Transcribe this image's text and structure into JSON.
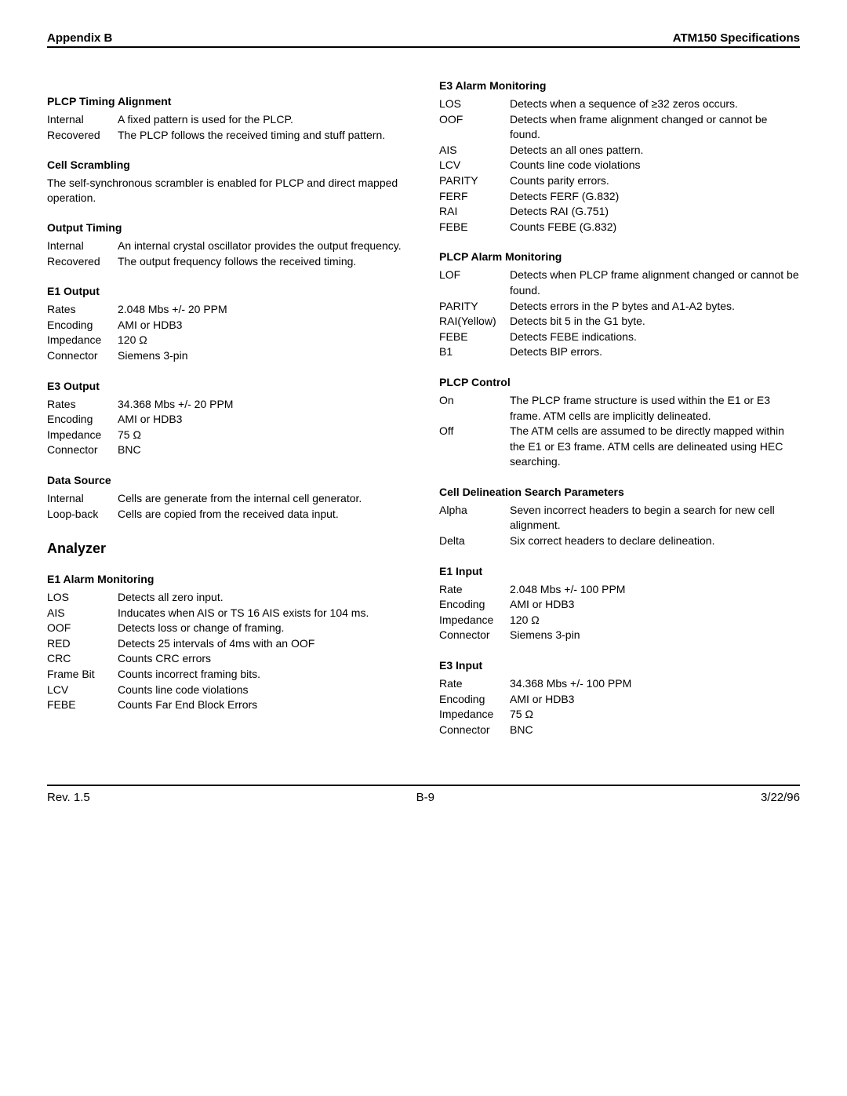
{
  "header": {
    "left": "Appendix B",
    "right": "ATM150 Specifications"
  },
  "footer": {
    "left": "Rev. 1.5",
    "center": "B-9",
    "right": "3/22/96"
  },
  "left": {
    "plcp_timing": {
      "title": "PLCP Timing Alignment",
      "rows": [
        {
          "k": "Internal",
          "v": "A fixed pattern is used for the PLCP."
        },
        {
          "k": "Recovered",
          "v": "The PLCP follows the received timing and stuff pattern."
        }
      ]
    },
    "cell_scrambling": {
      "title": "Cell Scrambling",
      "text": "The self-synchronous scrambler is enabled for PLCP and direct mapped operation."
    },
    "output_timing": {
      "title": "Output Timing",
      "rows": [
        {
          "k": "Internal",
          "v": "An internal crystal oscillator provides the output frequency."
        },
        {
          "k": "Recovered",
          "v": "The output frequency follows the received timing."
        }
      ]
    },
    "e1_output": {
      "title": "E1 Output",
      "rows": [
        {
          "k": "Rates",
          "v": "2.048 Mbs +/- 20 PPM"
        },
        {
          "k": "Encoding",
          "v": "AMI or HDB3"
        },
        {
          "k": "Impedance",
          "v": "120 Ω"
        },
        {
          "k": "Connector",
          "v": "Siemens 3-pin"
        }
      ]
    },
    "e3_output": {
      "title": "E3 Output",
      "rows": [
        {
          "k": "Rates",
          "v": "34.368 Mbs +/- 20 PPM"
        },
        {
          "k": "Encoding",
          "v": "AMI or HDB3"
        },
        {
          "k": "Impedance",
          "v": "75 Ω"
        },
        {
          "k": "Connector",
          "v": "BNC"
        }
      ]
    },
    "data_source": {
      "title": "Data Source",
      "rows": [
        {
          "k": "Internal",
          "v": "Cells are generate from the internal cell generator."
        },
        {
          "k": "Loop-back",
          "v": "Cells are copied from the received data input."
        }
      ]
    },
    "analyzer_title": "Analyzer",
    "e1_alarm": {
      "title": "E1 Alarm Monitoring",
      "rows": [
        {
          "k": "LOS",
          "v": "Detects all zero input."
        },
        {
          "k": "AIS",
          "v": "Inducates when AIS or TS 16 AIS exists for 104 ms."
        },
        {
          "k": "OOF",
          "v": "Detects loss or change of framing."
        },
        {
          "k": "RED",
          "v": "Detects 25 intervals of 4ms with an OOF"
        },
        {
          "k": "CRC",
          "v": "Counts CRC errors"
        },
        {
          "k": "Frame Bit",
          "v": "Counts incorrect framing bits."
        },
        {
          "k": "LCV",
          "v": "Counts line code violations"
        },
        {
          "k": "FEBE",
          "v": "Counts Far End Block Errors"
        }
      ]
    }
  },
  "right": {
    "e3_alarm": {
      "title": "E3 Alarm Monitoring",
      "rows": [
        {
          "k": "LOS",
          "v": "Detects when a sequence of ≥32 zeros occurs."
        },
        {
          "k": "OOF",
          "v": "Detects when frame alignment changed or cannot be found."
        },
        {
          "k": "AIS",
          "v": "Detects an all ones pattern."
        },
        {
          "k": "LCV",
          "v": "Counts line code violations"
        },
        {
          "k": "PARITY",
          "v": "Counts parity errors."
        },
        {
          "k": "FERF",
          "v": "Detects FERF (G.832)"
        },
        {
          "k": "RAI",
          "v": "Detects RAI (G.751)"
        },
        {
          "k": "FEBE",
          "v": "Counts FEBE (G.832)"
        }
      ]
    },
    "plcp_alarm": {
      "title": "PLCP Alarm Monitoring",
      "rows": [
        {
          "k": "LOF",
          "v": "Detects when PLCP frame alignment changed or cannot be found."
        },
        {
          "k": "PARITY",
          "v": "Detects errors in the P bytes and A1-A2 bytes."
        },
        {
          "k": "RAI(Yellow)",
          "v": "Detects bit 5 in the G1 byte."
        },
        {
          "k": "FEBE",
          "v": "Detects FEBE indications."
        },
        {
          "k": "B1",
          "v": "Detects BIP errors."
        }
      ]
    },
    "plcp_control": {
      "title": "PLCP Control",
      "rows": [
        {
          "k": "On",
          "v": "The PLCP frame structure is used within the E1 or E3 frame. ATM cells are implicitly delineated."
        },
        {
          "k": "Off",
          "v": "The ATM cells are assumed to be directly mapped within the E1 or E3 frame. ATM cells are delineated using HEC searching."
        }
      ]
    },
    "cell_delineation": {
      "title": "Cell Delineation Search Parameters",
      "rows": [
        {
          "k": "Alpha",
          "v": "Seven incorrect headers to begin a search for new cell alignment."
        },
        {
          "k": "Delta",
          "v": "Six correct headers to declare delineation."
        }
      ]
    },
    "e1_input": {
      "title": "E1 Input",
      "rows": [
        {
          "k": "Rate",
          "v": "2.048 Mbs +/- 100 PPM"
        },
        {
          "k": "Encoding",
          "v": "AMI or HDB3"
        },
        {
          "k": "Impedance",
          "v": "120 Ω"
        },
        {
          "k": "Connector",
          "v": "Siemens 3-pin"
        }
      ]
    },
    "e3_input": {
      "title": "E3 Input",
      "rows": [
        {
          "k": "Rate",
          "v": "34.368 Mbs +/- 100 PPM"
        },
        {
          "k": "Encoding",
          "v": "AMI or HDB3"
        },
        {
          "k": "Impedance",
          "v": "75 Ω"
        },
        {
          "k": "Connector",
          "v": "BNC"
        }
      ]
    }
  }
}
